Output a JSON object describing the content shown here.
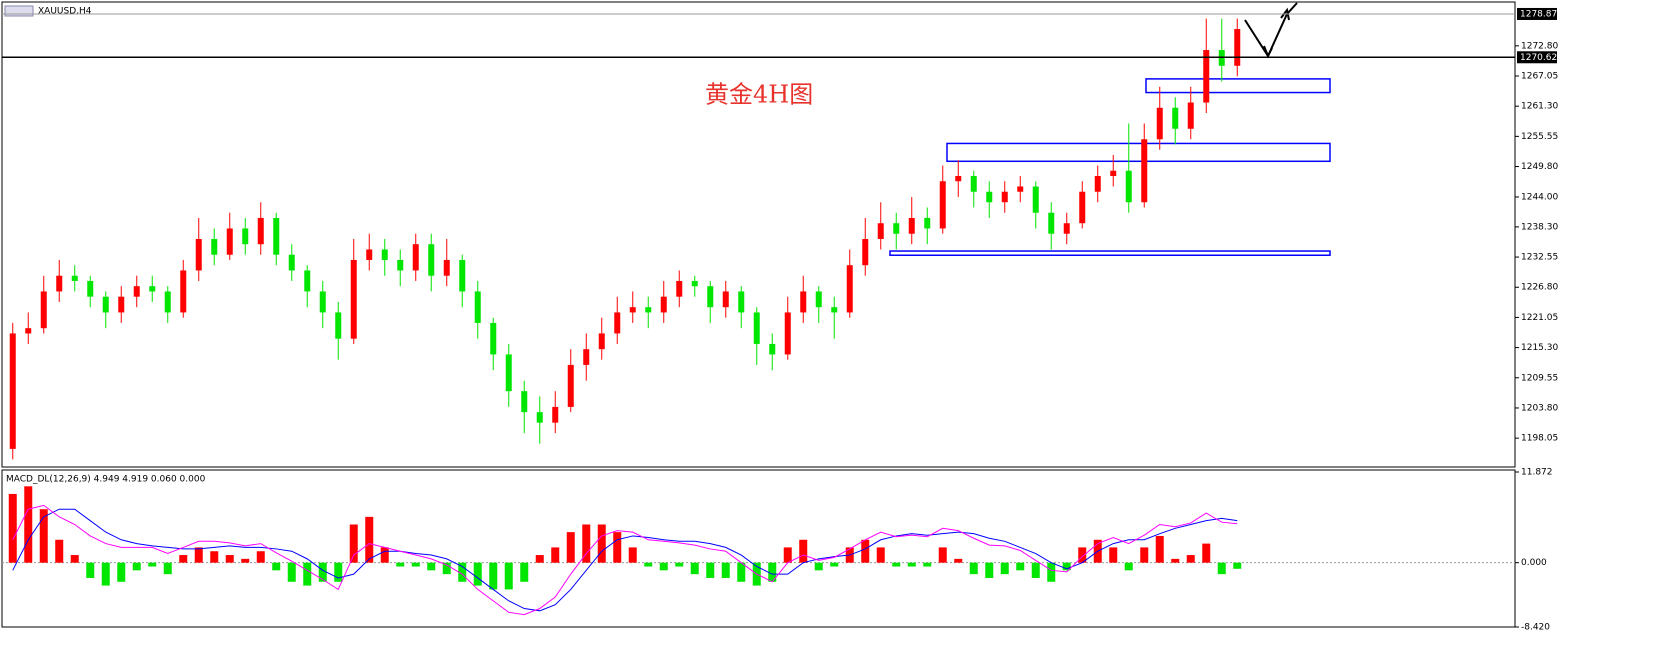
{
  "chart_data": [
    {
      "type": "candlestick",
      "title": "XAUUSD,H4",
      "annotation": "黄金4H图",
      "up_color": "#ff0000",
      "down_color": "#00e600",
      "ohlc": [
        [
          1196,
          1220,
          1194,
          1218
        ],
        [
          1218,
          1222,
          1216,
          1219
        ],
        [
          1219,
          1229,
          1218,
          1226
        ],
        [
          1226,
          1232,
          1224,
          1229
        ],
        [
          1229,
          1231,
          1226,
          1228
        ],
        [
          1228,
          1229,
          1223,
          1225
        ],
        [
          1225,
          1226,
          1219,
          1222
        ],
        [
          1222,
          1227,
          1220,
          1225
        ],
        [
          1225,
          1229,
          1223,
          1227
        ],
        [
          1227,
          1229,
          1224,
          1226
        ],
        [
          1226,
          1227,
          1220,
          1222
        ],
        [
          1222,
          1232,
          1221,
          1230
        ],
        [
          1230,
          1240,
          1228,
          1236
        ],
        [
          1236,
          1238,
          1231,
          1233
        ],
        [
          1233,
          1241,
          1232,
          1238
        ],
        [
          1238,
          1240,
          1233,
          1235
        ],
        [
          1235,
          1243,
          1233,
          1240
        ],
        [
          1240,
          1241,
          1231,
          1233
        ],
        [
          1233,
          1235,
          1228,
          1230
        ],
        [
          1230,
          1231,
          1223,
          1226
        ],
        [
          1226,
          1228,
          1219,
          1222
        ],
        [
          1222,
          1224,
          1213,
          1217
        ],
        [
          1217,
          1236,
          1216,
          1232
        ],
        [
          1232,
          1237,
          1230,
          1234
        ],
        [
          1234,
          1236,
          1229,
          1232
        ],
        [
          1232,
          1234,
          1227,
          1230
        ],
        [
          1230,
          1237,
          1228,
          1235
        ],
        [
          1235,
          1237,
          1226,
          1229
        ],
        [
          1229,
          1236,
          1227,
          1232
        ],
        [
          1232,
          1233,
          1223,
          1226
        ],
        [
          1226,
          1228,
          1217,
          1220
        ],
        [
          1220,
          1221,
          1211,
          1214
        ],
        [
          1214,
          1216,
          1204,
          1207
        ],
        [
          1207,
          1209,
          1199,
          1203
        ],
        [
          1203,
          1206,
          1197,
          1201
        ],
        [
          1201,
          1207,
          1199,
          1204
        ],
        [
          1204,
          1215,
          1203,
          1212
        ],
        [
          1212,
          1218,
          1209,
          1215
        ],
        [
          1215,
          1221,
          1213,
          1218
        ],
        [
          1218,
          1225,
          1216,
          1222
        ],
        [
          1222,
          1226,
          1220,
          1223
        ],
        [
          1223,
          1225,
          1219,
          1222
        ],
        [
          1222,
          1228,
          1220,
          1225
        ],
        [
          1225,
          1230,
          1223,
          1228
        ],
        [
          1228,
          1229,
          1225,
          1227
        ],
        [
          1227,
          1228,
          1220,
          1223
        ],
        [
          1223,
          1228,
          1221,
          1226
        ],
        [
          1226,
          1227,
          1219,
          1222
        ],
        [
          1222,
          1223,
          1212,
          1216
        ],
        [
          1216,
          1218,
          1211,
          1214
        ],
        [
          1214,
          1225,
          1213,
          1222
        ],
        [
          1222,
          1229,
          1220,
          1226
        ],
        [
          1226,
          1227,
          1220,
          1223
        ],
        [
          1223,
          1225,
          1217,
          1222
        ],
        [
          1222,
          1234,
          1221,
          1231
        ],
        [
          1231,
          1240,
          1229,
          1236
        ],
        [
          1236,
          1243,
          1234,
          1239
        ],
        [
          1239,
          1241,
          1234,
          1237
        ],
        [
          1237,
          1244,
          1235,
          1240
        ],
        [
          1240,
          1242,
          1235,
          1238
        ],
        [
          1238,
          1250,
          1237,
          1247
        ],
        [
          1247,
          1251,
          1244,
          1248
        ],
        [
          1248,
          1249,
          1242,
          1245
        ],
        [
          1245,
          1247,
          1240,
          1243
        ],
        [
          1243,
          1247,
          1241,
          1245
        ],
        [
          1245,
          1248,
          1243,
          1246
        ],
        [
          1246,
          1247,
          1238,
          1241
        ],
        [
          1241,
          1243,
          1234,
          1237
        ],
        [
          1237,
          1241,
          1235,
          1239
        ],
        [
          1239,
          1247,
          1238,
          1245
        ],
        [
          1245,
          1250,
          1243,
          1248
        ],
        [
          1248,
          1252,
          1246,
          1249
        ],
        [
          1249,
          1258,
          1241,
          1243
        ],
        [
          1243,
          1258,
          1242,
          1255
        ],
        [
          1255,
          1265,
          1253,
          1261
        ],
        [
          1261,
          1263,
          1254,
          1257
        ],
        [
          1257,
          1265,
          1255,
          1262
        ],
        [
          1262,
          1278,
          1260,
          1272
        ],
        [
          1272,
          1278,
          1266,
          1269
        ],
        [
          1269,
          1278,
          1267,
          1276
        ]
      ],
      "ylim": [
        1192.55,
        1280.58
      ],
      "yticks": [
        {
          "value": 1272.8,
          "label": "1272.80"
        },
        1267.05,
        {
          "value": 1261.3,
          "label": "1261.30"
        },
        1255.55,
        {
          "value": 1249.8,
          "label": "1249.80"
        },
        {
          "value": 1244,
          "label": "1244.00"
        },
        {
          "value": 1238.3,
          "label": "1238.30"
        },
        1232.55,
        {
          "value": 1226.8,
          "label": "1226.80"
        },
        1221.05,
        {
          "value": 1215.3,
          "label": "1215.30"
        },
        1209.55,
        {
          "value": 1203.8,
          "label": "1203.80"
        },
        1198.05
      ],
      "price_lines": [
        {
          "value": 1278.87,
          "label": "1278.87",
          "color": "#999999"
        },
        {
          "value": 1270.62,
          "label": "1270.62",
          "color": "#000000"
        }
      ],
      "zones": [
        [
          1263.9,
          1266.5
        ],
        [
          1250.8,
          1254.2
        ],
        [
          1232.9,
          1233.7
        ]
      ],
      "zone_color": "#0000ff"
    },
    {
      "type": "macd",
      "title": "MACD_DL(12,26,9) 4.949 4.919 0.060 0.000",
      "up_color": "#ff0000",
      "down_color": "#00e600",
      "histogram": [
        9,
        10,
        7,
        3,
        1,
        -2,
        -3,
        -2.5,
        -1,
        -0.5,
        -1.5,
        1,
        2,
        1.5,
        1,
        0.5,
        1.5,
        -1,
        -2.5,
        -3,
        -2.5,
        -2.5,
        5,
        6,
        2,
        -0.5,
        -0.5,
        -1,
        -1.5,
        -2.5,
        -3,
        -3.5,
        -3.5,
        -2.5,
        1,
        2,
        4,
        5,
        5,
        4,
        2,
        -0.5,
        -1,
        -0.5,
        -1.5,
        -2,
        -2,
        -2.5,
        -3,
        -2.5,
        2,
        3,
        -1,
        -0.5,
        2,
        3,
        2,
        -0.5,
        -0.5,
        -0.5,
        2,
        0.5,
        -1.5,
        -2,
        -1.5,
        -1,
        -2,
        -2.5,
        -1,
        2,
        3,
        2,
        -1,
        2,
        3.5,
        0.5,
        1,
        2.5,
        -1.5,
        -0.8
      ],
      "series": [
        {
          "color": "#0000ff",
          "values": [
            -1,
            3,
            6,
            7,
            7,
            5.5,
            4,
            3,
            2.5,
            2.2,
            2,
            1.8,
            1.8,
            2,
            2.2,
            2,
            2,
            1.8,
            1.5,
            0.5,
            -1,
            -2,
            -1.5,
            0.5,
            1.5,
            1.5,
            1.2,
            1,
            0.5,
            -0.5,
            -2,
            -3.5,
            -5,
            -6,
            -6.3,
            -5.5,
            -3.5,
            -1,
            1.5,
            3,
            3.5,
            3.3,
            3,
            2.8,
            2.8,
            2.5,
            2,
            1,
            -0.5,
            -1.5,
            -1.5,
            0,
            0.5,
            0.8,
            1,
            1.8,
            3,
            3.5,
            3.8,
            3.6,
            3.8,
            4,
            3.8,
            3.2,
            2.8,
            2,
            1.2,
            0,
            -0.8,
            0,
            1.5,
            2.5,
            3,
            3,
            3.8,
            4.5,
            5,
            5.5,
            5.8,
            5.5
          ]
        },
        {
          "color": "#ff00ff",
          "values": [
            3,
            7,
            7.5,
            6,
            5,
            3.5,
            2.5,
            2,
            2,
            2,
            1.2,
            2,
            2.8,
            2.8,
            2.6,
            2.2,
            2.5,
            1.3,
            0.2,
            -1,
            -2.2,
            -3.5,
            1,
            2.5,
            2,
            1.5,
            1,
            0.5,
            -0.3,
            -1.5,
            -3.5,
            -5,
            -6.5,
            -6.8,
            -6,
            -4.5,
            -1.5,
            1.2,
            3.5,
            4.2,
            4,
            3,
            2.8,
            2.6,
            2.3,
            1.8,
            1.5,
            0,
            -1.5,
            -2.5,
            0,
            1,
            0.3,
            0.7,
            1.8,
            3,
            4,
            3.4,
            3.6,
            3.4,
            4.5,
            4.2,
            3.2,
            2.3,
            2.2,
            1.6,
            0.3,
            -1,
            -1.2,
            0.8,
            2.5,
            3.3,
            2.5,
            3.6,
            5,
            4.7,
            5.2,
            6.5,
            5.3,
            5.1
          ]
        }
      ],
      "ylim": [
        -8.42,
        11.872
      ],
      "yticks": [
        11.872,
        {
          "value": 0,
          "label": "0.000"
        },
        {
          "value": -8.42,
          "label": "-8.420"
        }
      ]
    }
  ]
}
